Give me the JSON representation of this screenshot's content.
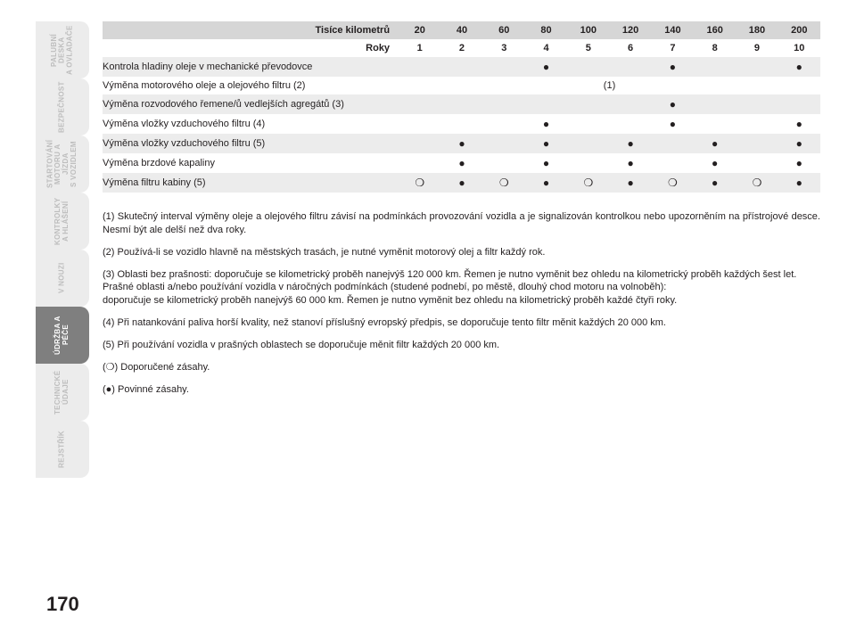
{
  "page_number": "170",
  "sidebar": {
    "tabs": [
      {
        "label": "PALUBNÍ DESKA\nA OVLADAČE",
        "active": false
      },
      {
        "label": "BEZPEČNOST",
        "active": false
      },
      {
        "label": "STARTOVÁNÍ\nMOTORU A JÍZDA\nS VOZIDLEM",
        "active": false
      },
      {
        "label": "KONTROLKY\nA HLÁŠENÍ",
        "active": false
      },
      {
        "label": "V NOUZI",
        "active": false
      },
      {
        "label": "ÚDRŽBA A PÉČE",
        "active": true
      },
      {
        "label": "TECHNICKÉ ÚDAJE",
        "active": false
      },
      {
        "label": "REJSTŘÍK",
        "active": false
      }
    ]
  },
  "glyphs": {
    "solid": "●",
    "hollow": "❍"
  },
  "table": {
    "header_km_label": "Tisíce kilometrů",
    "header_years_label": "Roky",
    "km": [
      "20",
      "40",
      "60",
      "80",
      "100",
      "120",
      "140",
      "160",
      "180",
      "200"
    ],
    "years": [
      "1",
      "2",
      "3",
      "4",
      "5",
      "6",
      "7",
      "8",
      "9",
      "10"
    ],
    "span_note": "(1)",
    "rows": [
      {
        "label": "Kontrola hladiny oleje v mechanické převodovce",
        "marks": [
          "",
          "",
          "",
          "solid",
          "",
          "",
          "solid",
          "",
          "",
          "solid"
        ]
      },
      {
        "label": "Výměna motorového oleje a olejového filtru (2)",
        "span_all": true
      },
      {
        "label": "Výměna rozvodového řemene/ů vedlejších agregátů (3)",
        "marks": [
          "",
          "",
          "",
          "",
          "",
          "",
          "solid",
          "",
          "",
          ""
        ]
      },
      {
        "label": "Výměna vložky vzduchového filtru  (4)",
        "marks": [
          "",
          "",
          "",
          "solid",
          "",
          "",
          "solid",
          "",
          "",
          "solid"
        ]
      },
      {
        "label": "Výměna vložky vzduchového filtru (5)",
        "marks": [
          "",
          "solid",
          "",
          "solid",
          "",
          "solid",
          "",
          "solid",
          "",
          "solid"
        ]
      },
      {
        "label": "Výměna brzdové kapaliny",
        "marks": [
          "",
          "solid",
          "",
          "solid",
          "",
          "solid",
          "",
          "solid",
          "",
          "solid"
        ]
      },
      {
        "label": "Výměna filtru kabiny (5)",
        "marks": [
          "hollow",
          "solid",
          "hollow",
          "solid",
          "hollow",
          "solid",
          "hollow",
          "solid",
          "hollow",
          "solid"
        ]
      }
    ]
  },
  "notes": [
    "(1) Skutečný interval výměny oleje a olejového filtru závisí na podmínkách provozování vozidla a je signalizován kontrolkou nebo upozorněním na přístrojové desce. Nesmí být ale delší než dva roky.",
    "(2) Používá-li se vozidlo hlavně na městských trasách, je nutné vyměnit motorový olej a filtr každý rok.",
    "(3) Oblasti bez prašnosti: doporučuje se kilometrický proběh nanejvýš 120 000 km. Řemen je nutno vyměnit bez ohledu na kilometrický proběh každých šest let.\nPrašné oblasti a/nebo používání vozidla v náročných podmínkách (studené podnebí, po městě, dlouhý chod motoru na volnoběh):\ndoporučuje se kilometrický proběh nanejvýš 60 000 km. Řemen je nutno vyměnit bez ohledu na kilometrický proběh každé čtyři roky.",
    "(4) Při natankování paliva horší kvality, než stanoví příslušný evropský předpis, se doporučuje tento filtr měnit každých 20 000 km.",
    "(5) Při používání vozidla v prašných oblastech se doporučuje měnit filtr každých 20 000 km.",
    "(❍) Doporučené zásahy.",
    "(●) Povinné zásahy."
  ]
}
